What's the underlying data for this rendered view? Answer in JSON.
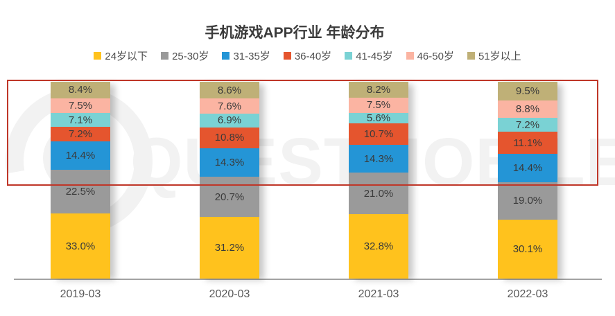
{
  "title": "手机游戏APP行业 年龄分布",
  "watermark": {
    "text": "QUESTMOBILE"
  },
  "highlight": {
    "color": "#BF3628"
  },
  "chart_data": {
    "type": "bar",
    "stacked": true,
    "percent_total": true,
    "title": "手机游戏APP行业 年龄分布",
    "legend_position": "top",
    "grid": false,
    "ylim": [
      0,
      100
    ],
    "value_suffix": "%",
    "categories": [
      "2019-03",
      "2020-03",
      "2021-03",
      "2022-03"
    ],
    "series": [
      {
        "name": "24岁以下",
        "color": "#FFC21D",
        "values": [
          33.0,
          31.2,
          32.8,
          30.1
        ]
      },
      {
        "name": "25-30岁",
        "color": "#9A9A9A",
        "values": [
          22.5,
          20.7,
          21.0,
          19.0
        ]
      },
      {
        "name": "31-35岁",
        "color": "#2495D6",
        "values": [
          14.4,
          14.3,
          14.3,
          14.4
        ]
      },
      {
        "name": "36-40岁",
        "color": "#E5552E",
        "values": [
          7.2,
          10.8,
          10.7,
          11.1
        ]
      },
      {
        "name": "41-45岁",
        "color": "#7AD2D4",
        "values": [
          7.1,
          6.9,
          5.6,
          7.2
        ]
      },
      {
        "name": "46-50岁",
        "color": "#FBB4A2",
        "values": [
          7.5,
          7.6,
          7.5,
          8.8
        ]
      },
      {
        "name": "51岁以上",
        "color": "#BFB077",
        "values": [
          8.4,
          8.6,
          8.2,
          9.5
        ]
      }
    ]
  },
  "layout_note": ""
}
